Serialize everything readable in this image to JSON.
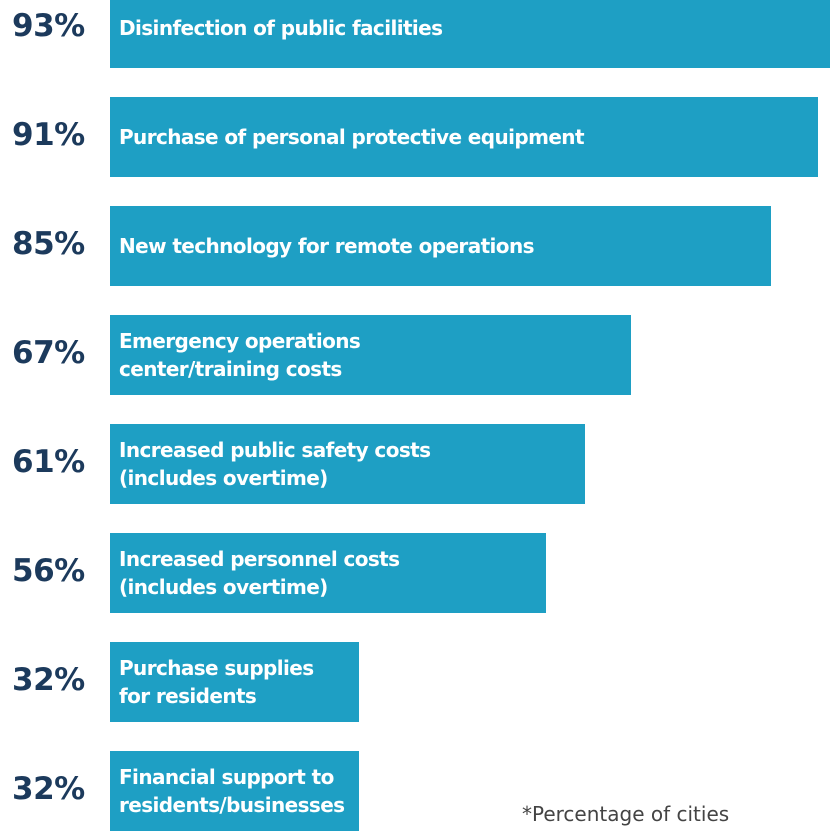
{
  "chart_data": {
    "type": "bar",
    "orientation": "horizontal",
    "categories": [
      "Disinfection of public facilities",
      "Purchase of personal protective equipment",
      "New technology for remote operations",
      "Emergency operations\ncenter/training costs",
      "Increased public safety costs\n(includes overtime)",
      "Increased personnel costs\n(includes overtime)",
      "Purchase supplies\nfor residents",
      "Financial support to\nresidents/businesses"
    ],
    "values": [
      93,
      91,
      85,
      67,
      61,
      56,
      32,
      32
    ],
    "value_labels": [
      "93%",
      "91%",
      "85%",
      "67%",
      "61%",
      "56%",
      "32%",
      "32%"
    ],
    "xlim": [
      0,
      100
    ],
    "bar_color": "#1e9fc4",
    "value_label_color": "#1c3a5c",
    "footnote": "*Percentage of cities"
  }
}
